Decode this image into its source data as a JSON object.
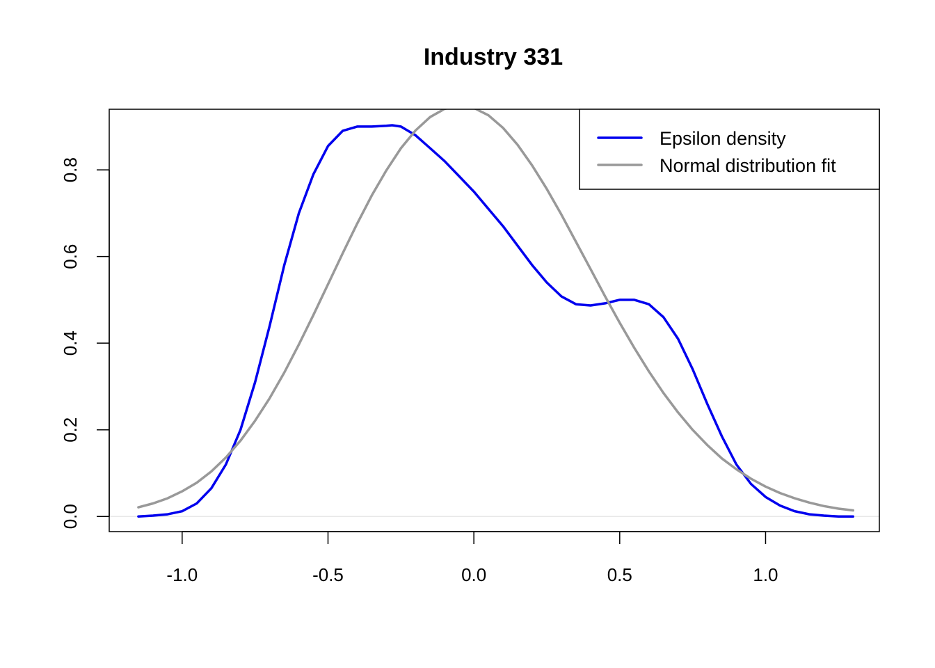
{
  "chart_data": {
    "type": "line",
    "title": "Industry 331",
    "xlabel": "",
    "ylabel": "",
    "xlim": [
      -1.25,
      1.39
    ],
    "ylim": [
      -0.035,
      0.94
    ],
    "x_ticks": [
      -1.0,
      -0.5,
      0.0,
      0.5,
      1.0
    ],
    "x_tick_labels": [
      "-1.0",
      "-0.5",
      "0.0",
      "0.5",
      "1.0"
    ],
    "y_ticks": [
      0.0,
      0.2,
      0.4,
      0.6,
      0.8
    ],
    "y_tick_labels": [
      "0.0",
      "0.2",
      "0.4",
      "0.6",
      "0.8"
    ],
    "grid": false,
    "zero_line": true,
    "legend_position": "top-right",
    "series": [
      {
        "name": "Epsilon density",
        "color": "#0000ee",
        "x": [
          -1.15,
          -1.1,
          -1.05,
          -1.0,
          -0.95,
          -0.9,
          -0.85,
          -0.8,
          -0.75,
          -0.7,
          -0.65,
          -0.6,
          -0.55,
          -0.5,
          -0.45,
          -0.4,
          -0.35,
          -0.3,
          -0.28,
          -0.25,
          -0.2,
          -0.15,
          -0.1,
          -0.05,
          0.0,
          0.05,
          0.1,
          0.15,
          0.2,
          0.25,
          0.3,
          0.35,
          0.4,
          0.45,
          0.5,
          0.55,
          0.6,
          0.65,
          0.7,
          0.75,
          0.8,
          0.85,
          0.9,
          0.95,
          1.0,
          1.05,
          1.1,
          1.15,
          1.2,
          1.25,
          1.3
        ],
        "y": [
          0.0,
          0.002,
          0.005,
          0.012,
          0.03,
          0.065,
          0.12,
          0.2,
          0.31,
          0.44,
          0.58,
          0.7,
          0.79,
          0.855,
          0.89,
          0.9,
          0.9,
          0.902,
          0.903,
          0.9,
          0.88,
          0.85,
          0.82,
          0.785,
          0.75,
          0.71,
          0.67,
          0.625,
          0.58,
          0.54,
          0.508,
          0.49,
          0.487,
          0.492,
          0.5,
          0.5,
          0.49,
          0.46,
          0.41,
          0.34,
          0.26,
          0.185,
          0.12,
          0.075,
          0.045,
          0.025,
          0.012,
          0.005,
          0.002,
          0.0,
          0.0
        ]
      },
      {
        "name": "Normal distribution fit",
        "color": "#999999",
        "x": [
          -1.15,
          -1.1,
          -1.05,
          -1.0,
          -0.95,
          -0.9,
          -0.85,
          -0.8,
          -0.75,
          -0.7,
          -0.65,
          -0.6,
          -0.55,
          -0.5,
          -0.45,
          -0.4,
          -0.35,
          -0.3,
          -0.25,
          -0.2,
          -0.15,
          -0.1,
          -0.05,
          0.0,
          0.05,
          0.1,
          0.15,
          0.2,
          0.25,
          0.3,
          0.35,
          0.4,
          0.45,
          0.5,
          0.55,
          0.6,
          0.65,
          0.7,
          0.75,
          0.8,
          0.85,
          0.9,
          0.95,
          1.0,
          1.05,
          1.1,
          1.15,
          1.2,
          1.25,
          1.3
        ],
        "y": [
          0.021,
          0.03,
          0.042,
          0.058,
          0.078,
          0.104,
          0.136,
          0.175,
          0.221,
          0.273,
          0.332,
          0.397,
          0.465,
          0.536,
          0.607,
          0.676,
          0.741,
          0.799,
          0.85,
          0.891,
          0.922,
          0.941,
          0.948,
          0.943,
          0.926,
          0.897,
          0.858,
          0.81,
          0.756,
          0.697,
          0.634,
          0.571,
          0.508,
          0.447,
          0.389,
          0.335,
          0.285,
          0.24,
          0.2,
          0.165,
          0.134,
          0.109,
          0.087,
          0.069,
          0.054,
          0.042,
          0.032,
          0.024,
          0.018,
          0.014
        ]
      }
    ]
  }
}
